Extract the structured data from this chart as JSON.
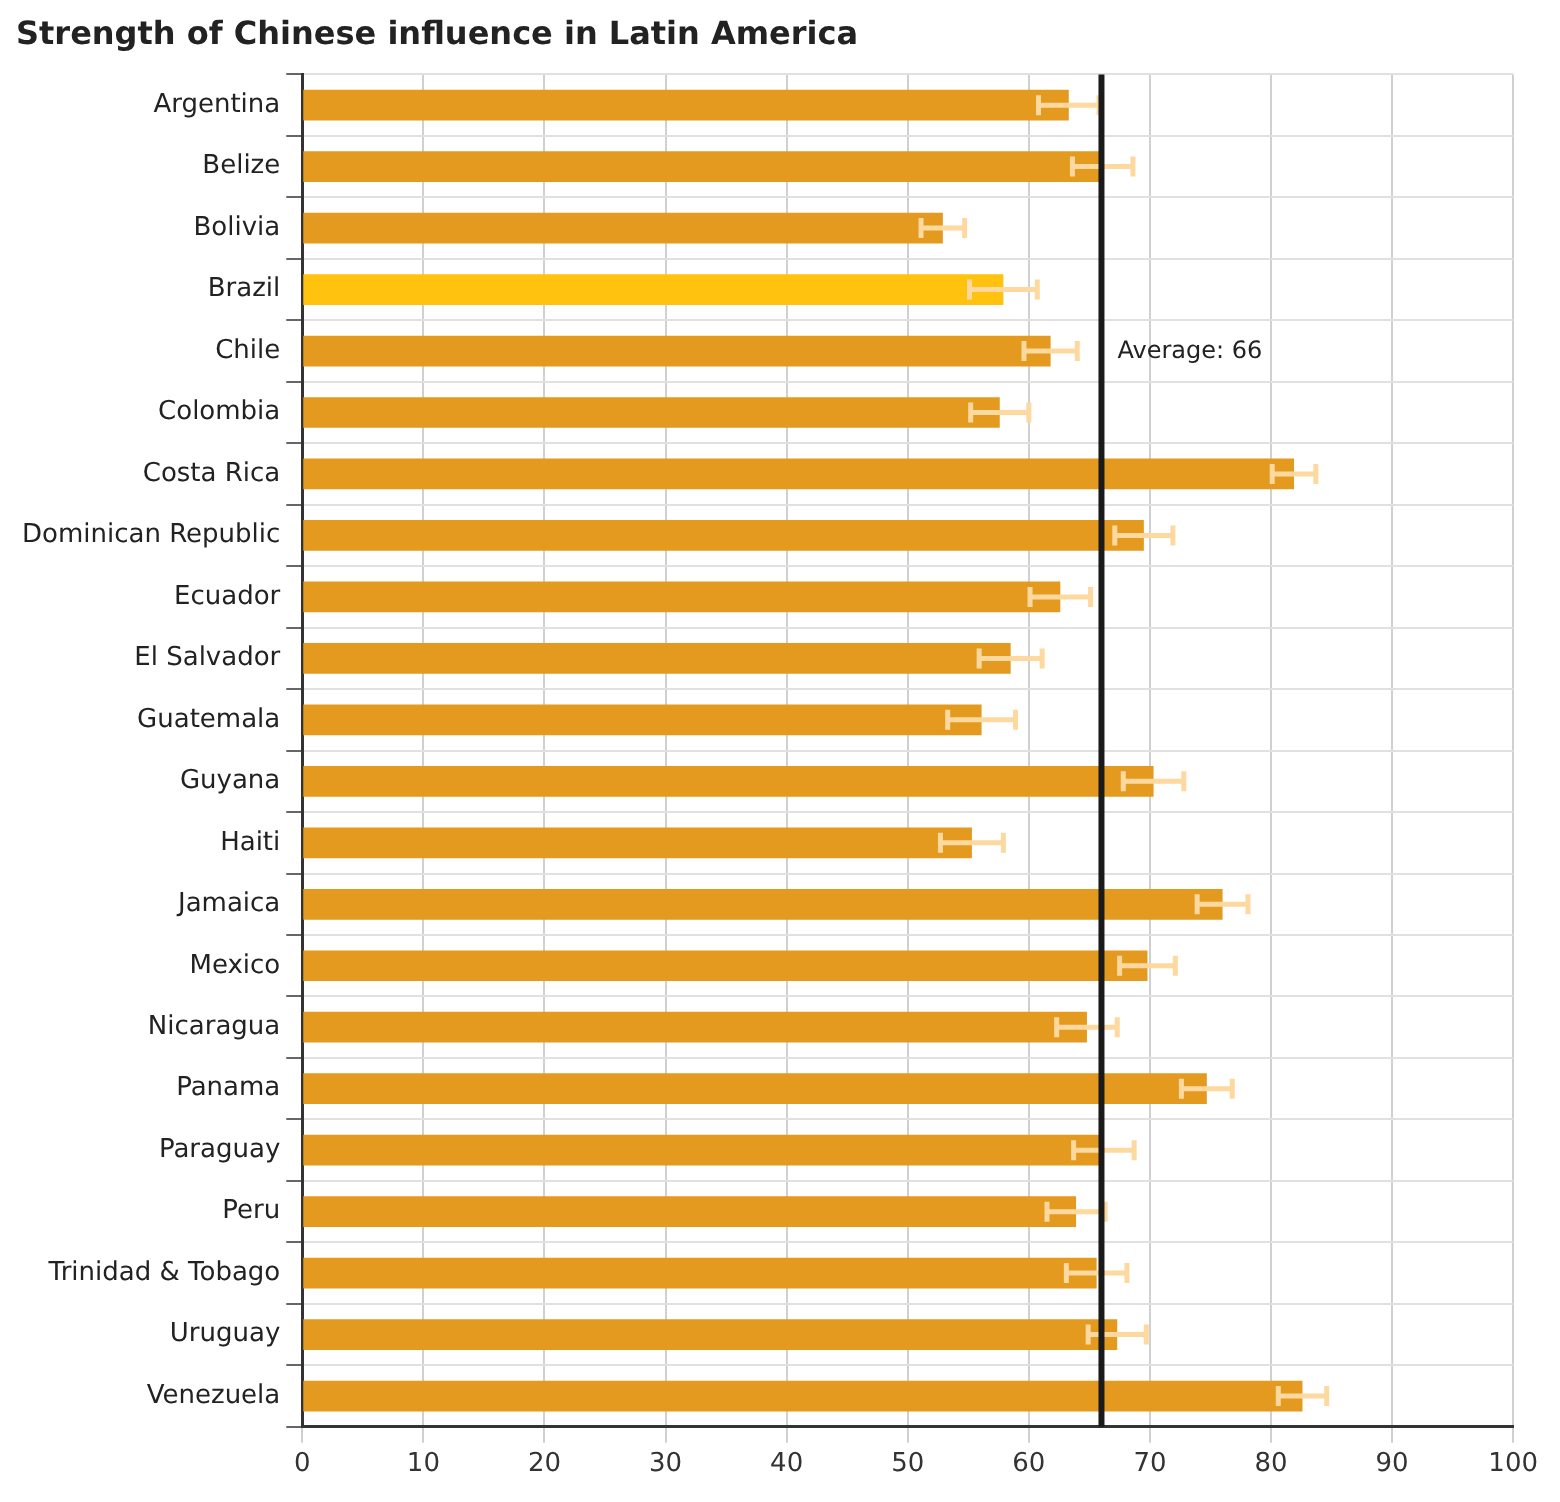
{
  "chart_data": {
    "type": "bar",
    "title": "Strength of Chinese influence in Latin America",
    "orientation": "horizontal",
    "categories": [
      "Argentina",
      "Belize",
      "Bolivia",
      "Brazil",
      "Chile",
      "Colombia",
      "Costa Rica",
      "Dominican Republic",
      "Ecuador",
      "El Salvador",
      "Guatemala",
      "Guyana",
      "Haiti",
      "Jamaica",
      "Mexico",
      "Nicaragua",
      "Panama",
      "Paraguay",
      "Peru",
      "Trinidad & Tobago",
      "Uruguay",
      "Venezuela"
    ],
    "values": [
      63.3,
      66.1,
      52.9,
      57.9,
      61.8,
      57.6,
      81.9,
      69.5,
      62.6,
      58.5,
      56.1,
      70.3,
      55.3,
      76.0,
      69.8,
      64.8,
      74.7,
      66.2,
      63.9,
      65.6,
      67.3,
      82.6
    ],
    "errors": [
      2.5,
      2.5,
      1.8,
      2.8,
      2.2,
      2.4,
      1.8,
      2.4,
      2.5,
      2.6,
      2.8,
      2.5,
      2.6,
      2.1,
      2.3,
      2.5,
      2.1,
      2.5,
      2.4,
      2.5,
      2.4,
      2.0
    ],
    "colors": [
      "#e39a1f",
      "#e39a1f",
      "#e39a1f",
      "#ffc20e",
      "#e39a1f",
      "#e39a1f",
      "#e39a1f",
      "#e39a1f",
      "#e39a1f",
      "#e39a1f",
      "#e39a1f",
      "#e39a1f",
      "#e39a1f",
      "#e39a1f",
      "#e39a1f",
      "#e39a1f",
      "#e39a1f",
      "#e39a1f",
      "#e39a1f",
      "#e39a1f",
      "#e39a1f",
      "#e39a1f"
    ],
    "xlim": [
      0,
      100
    ],
    "xticks": [
      0,
      10,
      20,
      30,
      40,
      50,
      60,
      70,
      80,
      90,
      100
    ],
    "ref_lines": [
      {
        "axis": "x",
        "value": 66,
        "label": "Average: 66",
        "color": "#1a1a1a"
      }
    ],
    "grid": true,
    "legend": false
  }
}
